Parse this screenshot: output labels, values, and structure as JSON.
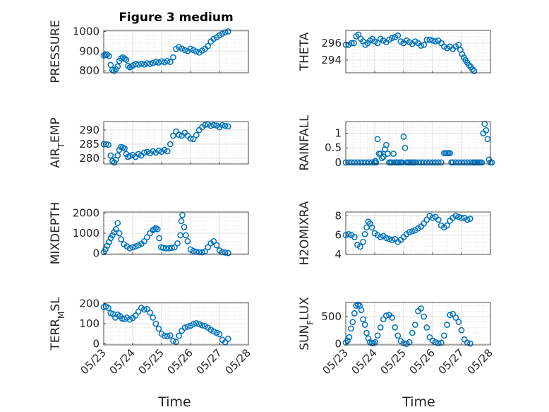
{
  "figure": {
    "title": "Figure 3 medium",
    "xlabel": "Time",
    "xticks": [
      "05/23",
      "05/24",
      "05/25",
      "05/26",
      "05/27",
      "05/28"
    ],
    "marker_color": "#0072bd",
    "grid_color": "#d7d7d7",
    "axis_color": "#262626"
  },
  "chart_data": [
    {
      "type": "scatter",
      "ylabel": "PRESSURE",
      "ylim": [
        790,
        1005
      ],
      "yticks": [
        "800",
        "900",
        "1000"
      ],
      "ytick_values": [
        800,
        900,
        1000
      ],
      "x": [
        0.0,
        0.06,
        0.12,
        0.18,
        0.24,
        0.3,
        0.36,
        0.42,
        0.48,
        0.54,
        0.6,
        0.66,
        0.72,
        0.78,
        0.84,
        0.9,
        0.96,
        1.02,
        1.1,
        1.2,
        1.3,
        1.4,
        1.5,
        1.6,
        1.7,
        1.8,
        1.9,
        2.0,
        2.1,
        2.2,
        2.3,
        2.4,
        2.5,
        2.6,
        2.7,
        2.8,
        2.9,
        3.0,
        3.1,
        3.2,
        3.3,
        3.4,
        3.5,
        3.6,
        3.7,
        3.8,
        3.9,
        4.0,
        4.1,
        4.2,
        4.3
      ],
      "y": [
        878,
        880,
        882,
        875,
        830,
        805,
        800,
        808,
        822,
        850,
        863,
        868,
        862,
        856,
        825,
        818,
        822,
        828,
        835,
        832,
        836,
        832,
        838,
        835,
        840,
        845,
        842,
        848,
        843,
        849,
        845,
        868,
        910,
        920,
        913,
        905,
        900,
        912,
        905,
        898,
        893,
        903,
        912,
        925,
        948,
        962,
        970,
        980,
        988,
        995,
        1000
      ]
    },
    {
      "type": "scatter",
      "ylabel": "THETA",
      "ylim": [
        292.5,
        297.5
      ],
      "yticks": [
        "294",
        "296"
      ],
      "ytick_values": [
        294,
        296
      ],
      "x": [
        0.0,
        0.1,
        0.2,
        0.28,
        0.36,
        0.44,
        0.52,
        0.6,
        0.68,
        0.76,
        0.84,
        0.92,
        1.0,
        1.1,
        1.2,
        1.3,
        1.4,
        1.5,
        1.6,
        1.7,
        1.8,
        1.9,
        2.0,
        2.1,
        2.2,
        2.3,
        2.4,
        2.5,
        2.6,
        2.7,
        2.8,
        2.9,
        3.0,
        3.1,
        3.2,
        3.3,
        3.4,
        3.5,
        3.6,
        3.7,
        3.8,
        3.9,
        3.96,
        4.02,
        4.08,
        4.14,
        4.2,
        4.26,
        4.32,
        4.38,
        4.44
      ],
      "y": [
        295.8,
        295.8,
        296.0,
        296.0,
        296.8,
        297.0,
        296.5,
        296.2,
        295.8,
        296.0,
        296.3,
        296.5,
        296.2,
        296.0,
        296.5,
        296.3,
        296.1,
        296.4,
        296.6,
        296.7,
        296.9,
        296.2,
        296.0,
        296.3,
        296.1,
        295.9,
        296.2,
        296.0,
        295.7,
        295.8,
        296.4,
        296.4,
        296.3,
        296.2,
        296.3,
        296.0,
        295.6,
        295.4,
        295.6,
        295.3,
        295.6,
        295.8,
        295.2,
        294.7,
        294.3,
        294.0,
        293.7,
        293.4,
        293.2,
        292.9,
        292.7
      ]
    },
    {
      "type": "scatter",
      "ylabel": "AIR_TEMP",
      "ylim": [
        278,
        293
      ],
      "yticks": [
        "280",
        "285",
        "290"
      ],
      "ytick_values": [
        280,
        285,
        290
      ],
      "x": [
        0.0,
        0.08,
        0.16,
        0.24,
        0.3,
        0.36,
        0.42,
        0.48,
        0.54,
        0.6,
        0.66,
        0.72,
        0.78,
        0.84,
        0.9,
        1.0,
        1.1,
        1.2,
        1.3,
        1.4,
        1.5,
        1.6,
        1.7,
        1.8,
        1.9,
        2.0,
        2.1,
        2.2,
        2.3,
        2.4,
        2.5,
        2.6,
        2.7,
        2.8,
        2.9,
        3.0,
        3.1,
        3.2,
        3.3,
        3.4,
        3.5,
        3.6,
        3.7,
        3.8,
        3.9,
        4.0,
        4.1,
        4.2,
        4.3
      ],
      "y": [
        285.0,
        285.0,
        284.8,
        281.0,
        279.0,
        278.5,
        279.5,
        281.0,
        283.0,
        284.0,
        283.8,
        283.5,
        281.5,
        280.5,
        280.8,
        281.2,
        280.5,
        281.5,
        281.0,
        282.0,
        282.3,
        281.8,
        282.5,
        282.0,
        282.7,
        282.3,
        283.0,
        282.5,
        285.0,
        288.0,
        289.5,
        288.3,
        288.0,
        289.0,
        288.0,
        287.0,
        286.8,
        288.2,
        290.0,
        291.0,
        291.8,
        292.0,
        291.5,
        291.8,
        291.6,
        291.0,
        291.7,
        291.5,
        291.3
      ]
    },
    {
      "type": "scatter",
      "ylabel": "RAINFALL",
      "ylim": [
        -0.05,
        1.4
      ],
      "yticks": [
        "0",
        "0.5",
        "1"
      ],
      "ytick_values": [
        0,
        0.5,
        1
      ],
      "x": [
        0.0,
        0.1,
        0.2,
        0.3,
        0.4,
        0.5,
        0.6,
        0.7,
        0.8,
        0.9,
        1.0,
        1.02,
        1.05,
        1.1,
        1.15,
        1.2,
        1.25,
        1.3,
        1.35,
        1.4,
        1.45,
        1.5,
        1.55,
        1.6,
        1.65,
        1.7,
        1.75,
        1.8,
        1.85,
        1.9,
        1.95,
        2.0,
        2.05,
        2.1,
        2.15,
        2.2,
        2.25,
        2.3,
        2.35,
        2.4,
        2.5,
        2.6,
        2.7,
        2.8,
        2.9,
        3.0,
        3.1,
        3.2,
        3.3,
        3.4,
        3.45,
        3.5,
        3.55,
        3.6,
        3.65,
        3.7,
        3.8,
        3.9,
        4.0,
        4.1,
        4.2,
        4.3,
        4.4,
        4.45,
        4.5,
        4.55,
        4.6,
        4.65,
        4.7,
        4.75,
        4.8,
        4.85,
        4.9,
        4.95,
        5.0,
        5.05
      ],
      "y": [
        0,
        0,
        0,
        0,
        0,
        0,
        0,
        0,
        0,
        0,
        0,
        0.05,
        0,
        0.8,
        0.3,
        0.3,
        0.15,
        0.2,
        0.45,
        0.6,
        0.3,
        0,
        0,
        0,
        0.3,
        0,
        0,
        0,
        0,
        0,
        0,
        0.88,
        0.5,
        0,
        0,
        0,
        0,
        0,
        0,
        0,
        0,
        0,
        0,
        0,
        0,
        0,
        0,
        0,
        0,
        0.32,
        0.32,
        0.32,
        0.32,
        0.32,
        0,
        0,
        0,
        0,
        0,
        0,
        0,
        0,
        0,
        0,
        0,
        0,
        0,
        0,
        0,
        1.0,
        1.32,
        1.1,
        0.8,
        0.1,
        0,
        0
      ]
    },
    {
      "type": "scatter",
      "ylabel": "MIXDEPTH",
      "ylim": [
        -50,
        2050
      ],
      "yticks": [
        "0",
        "1000",
        "2000"
      ],
      "ytick_values": [
        0,
        1000,
        2000
      ],
      "x": [
        0.0,
        0.06,
        0.12,
        0.18,
        0.24,
        0.3,
        0.36,
        0.42,
        0.48,
        0.54,
        0.6,
        0.7,
        0.8,
        0.9,
        1.0,
        1.1,
        1.2,
        1.3,
        1.4,
        1.5,
        1.6,
        1.7,
        1.75,
        1.8,
        1.86,
        1.92,
        1.98,
        2.05,
        2.15,
        2.25,
        2.35,
        2.45,
        2.55,
        2.65,
        2.68,
        2.72,
        2.78,
        2.84,
        2.9,
        3.0,
        3.1,
        3.2,
        3.3,
        3.4,
        3.5,
        3.6,
        3.7,
        3.8,
        3.9,
        4.0,
        4.1,
        4.2,
        4.3
      ],
      "y": [
        60,
        200,
        380,
        560,
        750,
        900,
        1050,
        1200,
        1500,
        1000,
        700,
        450,
        350,
        250,
        300,
        350,
        400,
        480,
        600,
        800,
        1000,
        1150,
        1200,
        1250,
        1200,
        750,
        300,
        280,
        250,
        250,
        280,
        300,
        500,
        900,
        1600,
        1900,
        1300,
        900,
        600,
        200,
        120,
        80,
        60,
        50,
        100,
        300,
        500,
        600,
        400,
        150,
        60,
        40,
        20
      ]
    },
    {
      "type": "scatter",
      "ylabel": "H2OMIXRA",
      "ylim": [
        4,
        8.4
      ],
      "yticks": [
        "4",
        "6",
        "8"
      ],
      "ytick_values": [
        4,
        6,
        8
      ],
      "x": [
        0.0,
        0.1,
        0.2,
        0.3,
        0.4,
        0.5,
        0.6,
        0.66,
        0.72,
        0.78,
        0.84,
        0.9,
        1.0,
        1.1,
        1.2,
        1.3,
        1.4,
        1.5,
        1.6,
        1.7,
        1.8,
        1.9,
        2.0,
        2.1,
        2.2,
        2.3,
        2.4,
        2.5,
        2.6,
        2.7,
        2.8,
        2.9,
        3.0,
        3.1,
        3.2,
        3.3,
        3.4,
        3.5,
        3.6,
        3.7,
        3.8,
        3.9,
        4.0,
        4.1,
        4.2,
        4.3
      ],
      "y": [
        6.0,
        6.1,
        6.0,
        5.8,
        5.0,
        4.8,
        5.3,
        6.1,
        6.8,
        7.4,
        7.2,
        6.8,
        6.2,
        6.0,
        5.8,
        5.9,
        5.7,
        5.6,
        5.5,
        5.6,
        5.3,
        5.5,
        5.8,
        6.1,
        6.3,
        6.4,
        6.5,
        6.7,
        6.9,
        7.2,
        7.6,
        8.0,
        7.8,
        7.9,
        7.6,
        7.0,
        6.8,
        7.0,
        7.5,
        7.8,
        8.0,
        7.9,
        7.8,
        7.8,
        7.6,
        7.7
      ]
    },
    {
      "type": "scatter",
      "ylabel": "TERR_MSL",
      "ylim": [
        -5,
        205
      ],
      "yticks": [
        "0",
        "100",
        "200"
      ],
      "ytick_values": [
        0,
        100,
        200
      ],
      "x": [
        0.0,
        0.08,
        0.16,
        0.24,
        0.32,
        0.4,
        0.48,
        0.56,
        0.64,
        0.72,
        0.8,
        0.9,
        1.0,
        1.1,
        1.2,
        1.3,
        1.4,
        1.5,
        1.6,
        1.7,
        1.8,
        1.9,
        2.0,
        2.1,
        2.2,
        2.3,
        2.4,
        2.5,
        2.6,
        2.7,
        2.8,
        2.9,
        3.0,
        3.1,
        3.2,
        3.3,
        3.4,
        3.5,
        3.6,
        3.7,
        3.8,
        3.9,
        4.0,
        4.1,
        4.2,
        4.3
      ],
      "y": [
        182,
        185,
        178,
        152,
        148,
        130,
        145,
        138,
        125,
        122,
        130,
        120,
        128,
        140,
        160,
        178,
        170,
        172,
        155,
        130,
        100,
        75,
        50,
        40,
        38,
        42,
        15,
        10,
        40,
        65,
        80,
        85,
        90,
        98,
        102,
        98,
        92,
        88,
        80,
        70,
        62,
        55,
        48,
        20,
        8,
        25
      ]
    },
    {
      "type": "scatter",
      "ylabel": "SUN_FLUX",
      "ylim": [
        -20,
        760
      ],
      "yticks": [
        "0",
        "500"
      ],
      "ytick_values": [
        0,
        500
      ],
      "x": [
        0.0,
        0.06,
        0.12,
        0.18,
        0.24,
        0.3,
        0.36,
        0.42,
        0.48,
        0.54,
        0.6,
        0.66,
        0.72,
        0.78,
        0.84,
        0.9,
        0.96,
        1.02,
        1.1,
        1.2,
        1.3,
        1.4,
        1.5,
        1.6,
        1.7,
        1.8,
        1.9,
        2.0,
        2.1,
        2.2,
        2.3,
        2.4,
        2.5,
        2.6,
        2.7,
        2.8,
        2.9,
        3.0,
        3.1,
        3.2,
        3.3,
        3.4,
        3.5,
        3.6,
        3.7,
        3.8,
        3.9,
        4.0,
        4.1,
        4.2,
        4.3
      ],
      "y": [
        20,
        60,
        120,
        280,
        400,
        560,
        700,
        720,
        700,
        620,
        450,
        350,
        200,
        100,
        30,
        10,
        10,
        30,
        150,
        300,
        450,
        520,
        530,
        480,
        300,
        150,
        50,
        10,
        0,
        30,
        200,
        350,
        600,
        650,
        500,
        300,
        120,
        60,
        30,
        10,
        20,
        150,
        350,
        530,
        550,
        480,
        400,
        250,
        80,
        20,
        5
      ]
    }
  ]
}
